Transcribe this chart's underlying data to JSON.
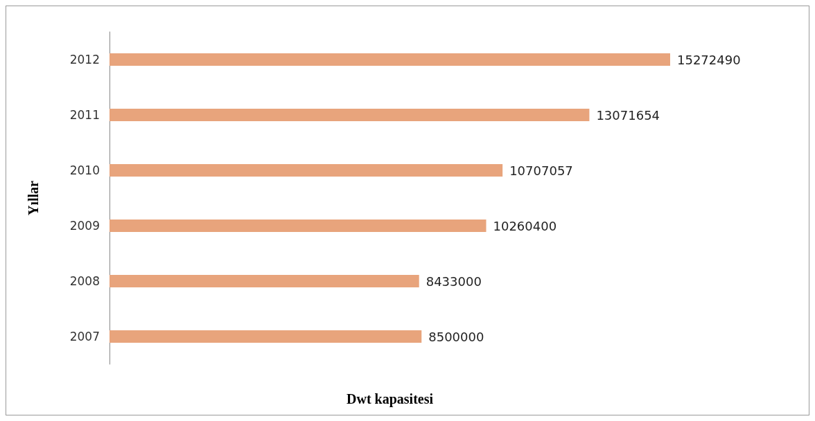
{
  "chart_data": {
    "type": "bar",
    "orientation": "horizontal",
    "xlabel": "Dwt kapasitesi",
    "ylabel": "Yıllar",
    "categories": [
      "2012",
      "2011",
      "2010",
      "2009",
      "2008",
      "2007"
    ],
    "values": [
      15272490,
      13071654,
      10707057,
      10260400,
      8433000,
      8500000
    ],
    "color": "#e8a47c",
    "data_labels": true
  }
}
